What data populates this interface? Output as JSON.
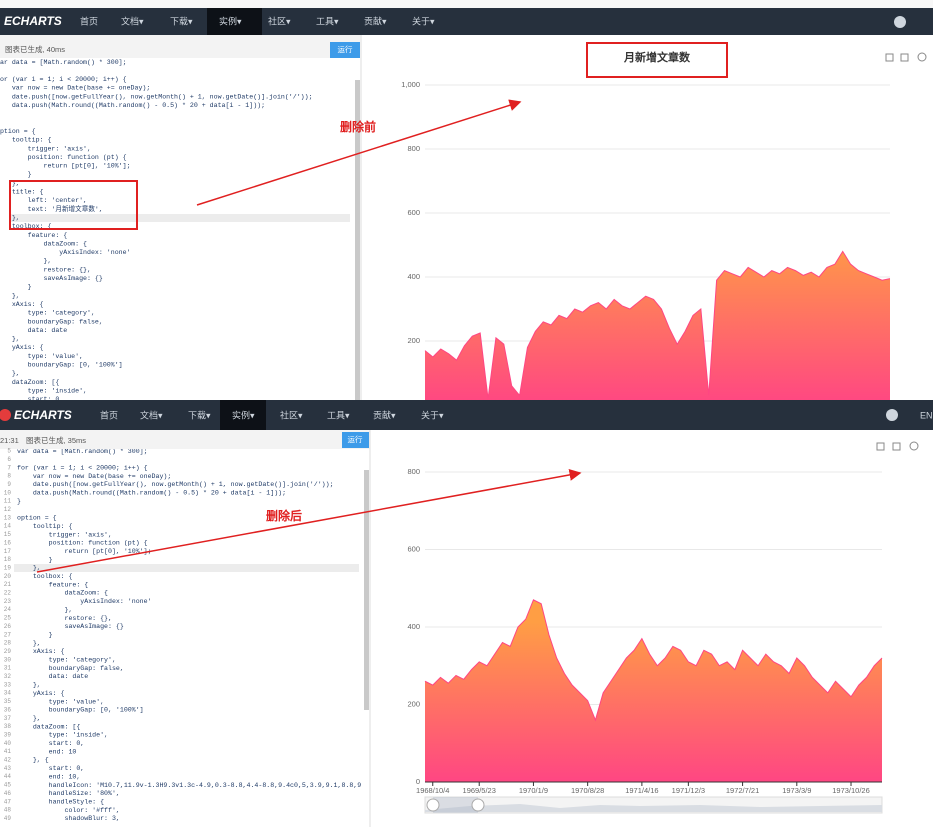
{
  "top_panel": {
    "nav": {
      "logo": "ECHARTS",
      "items": [
        "首页",
        "文档▾",
        "下载▾",
        "实例▾",
        "社区▾",
        "工具▾",
        "贡献▾",
        "关于▾"
      ]
    },
    "status": "图表已生成, 40ms",
    "run_button": "运行",
    "annotation": "删除前",
    "code": [
      "var data = [Math.random() * 300];",
      null,
      "for (var i = 1; i < 20000; i++) {",
      "    var now = new Date(base += oneDay);",
      "    date.push([now.getFullYear(), now.getMonth() + 1, now.getDate()].join('/'));",
      "    data.push(Math.round((Math.random() - 0.5) * 20 + data[i - 1]));",
      "}",
      null,
      "option = {",
      "    tooltip: {",
      "        trigger: 'axis',",
      "        position: function (pt) {",
      "            return [pt[0], '10%'];",
      "        }",
      "    },",
      "    title: {",
      "        left: 'center',",
      "        text: '月新增文章数',",
      "    },",
      "    toolbox: {",
      "        feature: {",
      "            dataZoom: {",
      "                yAxisIndex: 'none'",
      "            },",
      "            restore: {},",
      "            saveAsImage: {}",
      "        }",
      "    },",
      "    xAxis: {",
      "        type: 'category',",
      "        boundaryGap: false,",
      "        data: date",
      "    },",
      "    yAxis: {",
      "        type: 'value',",
      "        boundaryGap: [0, '100%']",
      "    },",
      "    dataZoom: [{",
      "        type: 'inside',",
      "        start: 0,"
    ]
  },
  "bottom_panel": {
    "nav": {
      "logo": "ECHARTS",
      "items": [
        "首页",
        "文档▾",
        "下载▾",
        "实例▾",
        "社区▾",
        "工具▾",
        "贡献▾",
        "关于▾"
      ],
      "lang": "EN"
    },
    "time": "21:31",
    "status": "图表已生成, 35ms",
    "run_button": "运行",
    "annotation": "删除后",
    "line_numbers": [
      5,
      6,
      7,
      8,
      9,
      10,
      11,
      12,
      13,
      14,
      15,
      16,
      17,
      18,
      19,
      20,
      21,
      22,
      23,
      24,
      25,
      26,
      27,
      28,
      29,
      30,
      31,
      32,
      33,
      34,
      35,
      36,
      37,
      38,
      39,
      40,
      41,
      42,
      43,
      44,
      45,
      46,
      47,
      48,
      49
    ],
    "code": [
      "var data = [Math.random() * 300];",
      null,
      "for (var i = 1; i < 20000; i++) {",
      "    var now = new Date(base += oneDay);",
      "    date.push([now.getFullYear(), now.getMonth() + 1, now.getDate()].join('/'));",
      "    data.push(Math.round((Math.random() - 0.5) * 20 + data[i - 1]));",
      "}",
      null,
      "option = {",
      "    tooltip: {",
      "        trigger: 'axis',",
      "        position: function (pt) {",
      "            return [pt[0], '10%'];",
      "        }",
      "    },",
      "    toolbox: {",
      "        feature: {",
      "            dataZoom: {",
      "                yAxisIndex: 'none'",
      "            },",
      "            restore: {},",
      "            saveAsImage: {}",
      "        }",
      "    },",
      "    xAxis: {",
      "        type: 'category',",
      "        boundaryGap: false,",
      "        data: date",
      "    },",
      "    yAxis: {",
      "        type: 'value',",
      "        boundaryGap: [0, '100%']",
      "    },",
      "    dataZoom: [{",
      "        type: 'inside',",
      "        start: 0,",
      "        end: 10",
      "    }, {",
      "        start: 0,",
      "        end: 10,",
      "        handleIcon: 'M10.7,11.9v-1.3H9.3v1.3c-4.9,0.3-8.8,4.4-8.8,9.4c0,5,3.9,9.1,8.8,9",
      "        handleSize: '80%',",
      "        handleStyle: {",
      "            color: '#fff',",
      "            shadowBlur: 3,"
    ]
  },
  "chart_data": [
    {
      "type": "area",
      "title": "月新增文章数",
      "color": "#ff4683",
      "gradient": [
        "#ff9e44",
        "#ff4683"
      ],
      "grid": true,
      "ylim": [
        0,
        1000
      ],
      "yticks": [
        200,
        400,
        600,
        800,
        {
          "value": 1000,
          "label": "1,000"
        }
      ],
      "values": [
        170,
        150,
        175,
        160,
        140,
        185,
        215,
        225,
        20,
        210,
        190,
        60,
        30,
        180,
        230,
        260,
        250,
        280,
        270,
        300,
        290,
        310,
        320,
        300,
        330,
        310,
        300,
        320,
        340,
        330,
        300,
        240,
        190,
        230,
        280,
        300,
        30,
        390,
        420,
        410,
        400,
        430,
        415,
        400,
        420,
        410,
        430,
        420,
        405,
        415,
        400,
        430,
        440,
        480,
        440,
        420,
        410,
        400,
        390,
        395
      ]
    },
    {
      "type": "area",
      "color": "#ff4683",
      "gradient": [
        "#ff9e44",
        "#ff4683"
      ],
      "grid": true,
      "ylim": [
        0,
        800
      ],
      "yticks": [
        0,
        200,
        400,
        600,
        800
      ],
      "categories": [
        null,
        "1968/10/4",
        null,
        null,
        null,
        null,
        null,
        "1969/5/23",
        null,
        null,
        null,
        null,
        null,
        null,
        "1970/1/9",
        null,
        null,
        null,
        null,
        null,
        null,
        "1970/8/28",
        null,
        null,
        null,
        null,
        null,
        null,
        "1971/4/16",
        null,
        null,
        null,
        null,
        null,
        "1971/12/3",
        null,
        null,
        null,
        null,
        null,
        null,
        "1972/7/21",
        null,
        null,
        null,
        null,
        null,
        null,
        "1973/3/9",
        null,
        null,
        null,
        null,
        null,
        null,
        "1973/10/26",
        null,
        null,
        null,
        null
      ],
      "values": [
        260,
        250,
        270,
        255,
        275,
        265,
        290,
        310,
        300,
        330,
        360,
        350,
        400,
        420,
        470,
        460,
        380,
        320,
        280,
        250,
        230,
        210,
        160,
        230,
        260,
        290,
        320,
        340,
        370,
        330,
        300,
        320,
        350,
        340,
        310,
        300,
        340,
        330,
        300,
        310,
        290,
        340,
        320,
        300,
        330,
        310,
        300,
        280,
        320,
        300,
        270,
        250,
        230,
        260,
        240,
        220,
        250,
        270,
        300,
        320
      ]
    }
  ]
}
